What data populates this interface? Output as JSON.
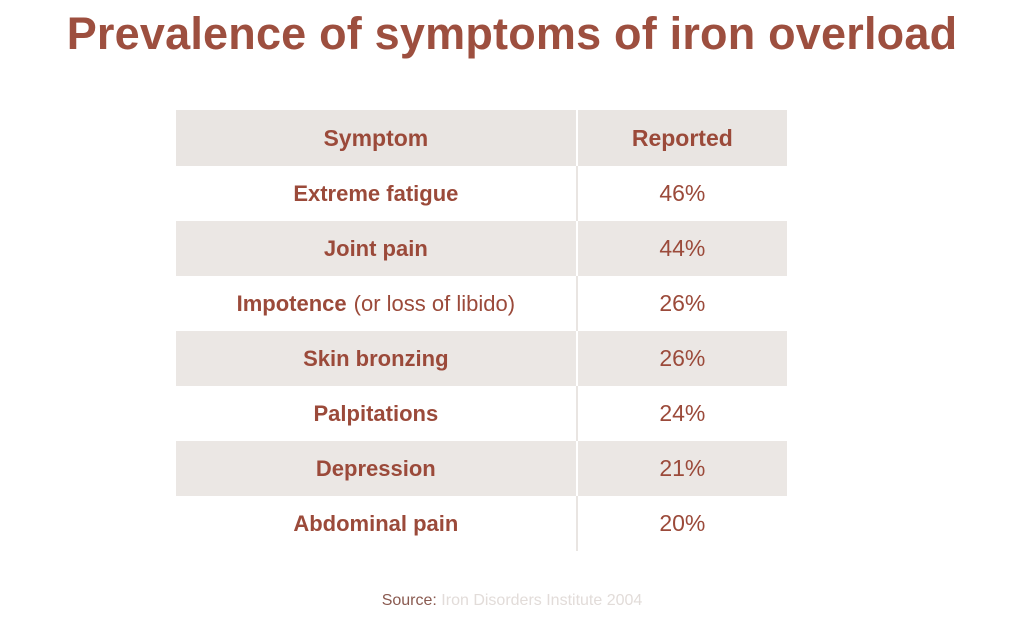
{
  "title": "Prevalence of symptoms of iron overload",
  "table": {
    "headers": [
      "Symptom",
      "Reported"
    ],
    "rows": [
      {
        "symptom": "Extreme fatigue",
        "reported": "46%"
      },
      {
        "symptom": "Joint pain",
        "reported": "44%"
      },
      {
        "symptom": "Impotence",
        "note": "(or loss of libido)",
        "reported": "26%"
      },
      {
        "symptom": "Skin bronzing",
        "reported": "26%"
      },
      {
        "symptom": "Palpitations",
        "reported": "24%"
      },
      {
        "symptom": "Depression",
        "reported": "21%"
      },
      {
        "symptom": "Abdominal pain",
        "reported": "20%"
      }
    ]
  },
  "source": {
    "label": "Source:",
    "text": "Iron Disorders Institute 2004"
  }
}
